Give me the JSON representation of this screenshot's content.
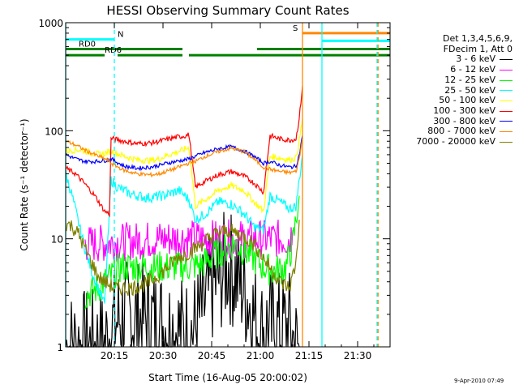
{
  "chart_data": {
    "type": "line",
    "title": "HESSI Observing Summary Count Rates",
    "xlabel": "Start Time (16-Aug-05 20:00:02)",
    "ylabel": "Count Rate (s⁻¹ detector⁻¹)",
    "y_scale": "log",
    "ylim": [
      1,
      1000
    ],
    "xlim_minutes": [
      0,
      100
    ],
    "x_ticks": [
      {
        "at": 15,
        "label": "20:15"
      },
      {
        "at": 30,
        "label": "20:30"
      },
      {
        "at": 45,
        "label": "20:45"
      },
      {
        "at": 60,
        "label": "21:00"
      },
      {
        "at": 75,
        "label": "21:15"
      },
      {
        "at": 90,
        "label": "21:30"
      }
    ],
    "y_ticks": [
      {
        "at": 1,
        "label": "1"
      },
      {
        "at": 10,
        "label": "10"
      },
      {
        "at": 100,
        "label": "100"
      },
      {
        "at": 1000,
        "label": "1000"
      }
    ],
    "legend": {
      "header": [
        "Det 1,3,4,5,6,9,",
        "FDecim 1, Att 0"
      ],
      "position": "right"
    },
    "series": [
      {
        "name": "3 - 6 keV",
        "color": "#000000",
        "x": [
          0,
          12,
          14,
          17,
          25,
          38,
          40,
          45,
          50,
          55,
          60,
          62,
          66,
          69,
          71,
          72
        ],
        "y": [
          1,
          1,
          1.5,
          1.9,
          1.8,
          1.3,
          1.5,
          3.5,
          5.8,
          3.5,
          1.3,
          1.5,
          1.5,
          1.5,
          1,
          1
        ]
      },
      {
        "name": "6 - 12 keV",
        "color": "#ff00ff",
        "x": [
          6,
          10,
          20,
          30,
          38,
          45,
          55,
          62,
          66,
          69,
          70
        ],
        "y": [
          9,
          9,
          9.5,
          10,
          10,
          10,
          10,
          10,
          10,
          10,
          12
        ]
      },
      {
        "name": "12 - 25 keV",
        "color": "#00ff00",
        "x": [
          6,
          10,
          17,
          20,
          30,
          38,
          42,
          47,
          52,
          57,
          61,
          64,
          68,
          70,
          72
        ],
        "y": [
          3,
          3.5,
          5.5,
          5.5,
          5.5,
          5.5,
          5.8,
          7.5,
          9,
          7,
          5.5,
          5,
          5.5,
          9,
          25
        ]
      },
      {
        "name": "25 - 50 keV",
        "color": "#00ffff",
        "x": [
          0,
          2,
          4,
          6,
          8,
          10,
          12,
          14,
          16,
          20,
          25,
          30,
          35,
          38,
          40,
          43,
          47,
          51,
          55,
          58,
          61,
          63,
          66,
          69,
          71,
          72,
          73
        ],
        "y": [
          40,
          25,
          14,
          8,
          5,
          3.5,
          2.5,
          35,
          30,
          26,
          24,
          25,
          28,
          23,
          15,
          17,
          22,
          21,
          17,
          13,
          12,
          25,
          22,
          19,
          20,
          35,
          60
        ]
      },
      {
        "name": "50 - 100 keV",
        "color": "#ffff00",
        "x": [
          0,
          4,
          6,
          8,
          11,
          14,
          18,
          22,
          26,
          29,
          31,
          34,
          37,
          38,
          40,
          43,
          47,
          51,
          55,
          58,
          61,
          63,
          66,
          69,
          71,
          72,
          73
        ],
        "y": [
          65,
          67,
          65,
          62,
          60,
          65,
          58,
          54,
          53,
          55,
          59,
          63,
          68,
          70,
          20,
          23,
          28,
          31,
          28,
          22,
          18,
          58,
          56,
          54,
          56,
          80,
          130
        ]
      },
      {
        "name": "100 - 300 keV",
        "color": "#ff0000",
        "x": [
          0,
          3,
          6,
          9,
          12,
          13.5,
          14,
          18,
          22,
          26,
          29,
          31,
          34,
          37,
          38,
          40,
          43,
          47,
          51,
          55,
          58,
          61,
          63,
          66,
          69,
          71,
          72,
          73
        ],
        "y": [
          45,
          40,
          32,
          25,
          18,
          17,
          85,
          80,
          76,
          77,
          80,
          83,
          87,
          90,
          92,
          30,
          34,
          39,
          42,
          38,
          33,
          27,
          90,
          84,
          82,
          84,
          130,
          260
        ]
      },
      {
        "name": "300 - 800 keV",
        "color": "#0000ff",
        "x": [
          0,
          3,
          6,
          9,
          12,
          13.5,
          14,
          18,
          22,
          26,
          29,
          31,
          34,
          37,
          38,
          40,
          43,
          47,
          51,
          55,
          58,
          61,
          63,
          66,
          69,
          71,
          72,
          73
        ],
        "y": [
          60,
          55,
          52,
          52,
          53,
          54,
          55,
          47,
          45,
          46,
          48,
          50,
          52,
          54,
          55,
          58,
          63,
          68,
          71,
          65,
          58,
          50,
          52,
          48,
          46,
          47,
          60,
          90
        ]
      },
      {
        "name": "800 - 7000 keV",
        "color": "#ff8800",
        "x": [
          0,
          3,
          6,
          9,
          12,
          13.5,
          14,
          18,
          22,
          26,
          29,
          31,
          34,
          37,
          38,
          40,
          43,
          47,
          51,
          55,
          58,
          61,
          63,
          66,
          69,
          71,
          72,
          73
        ],
        "y": [
          80,
          74,
          66,
          60,
          55,
          52,
          50,
          43,
          40,
          39,
          40,
          42,
          45,
          49,
          50,
          52,
          58,
          64,
          69,
          64,
          55,
          46,
          44,
          42,
          41,
          42,
          55,
          85
        ]
      },
      {
        "name": "7000 - 20000 keV",
        "color": "#808000",
        "x": [
          0,
          2,
          4,
          6,
          8,
          10,
          12,
          15,
          20,
          25,
          30,
          34,
          38,
          42,
          46,
          50,
          54,
          58,
          62,
          66,
          69,
          71,
          72
        ],
        "y": [
          14,
          13,
          11,
          8,
          6,
          4.5,
          4,
          3.5,
          3.5,
          3.8,
          5,
          6.5,
          7.5,
          9,
          11,
          12,
          11,
          9,
          6,
          4,
          3.5,
          6,
          15
        ]
      }
    ],
    "state_bars": [
      {
        "label": "N",
        "color": "#00ffff",
        "y": 700,
        "segments": [
          [
            0,
            15
          ]
        ],
        "label_at": 16
      },
      {
        "label": "RD0",
        "color": "#008000",
        "y": 570,
        "segments": [
          [
            0,
            36
          ],
          [
            59,
            100
          ]
        ],
        "label_at": 4
      },
      {
        "label": "RD6",
        "color": "#008000",
        "y": 500,
        "segments": [
          [
            0,
            12
          ],
          [
            16,
            36
          ],
          [
            38,
            59
          ],
          [
            59,
            100
          ]
        ],
        "label_at": 12
      },
      {
        "label": "S",
        "color": "#ff8800",
        "y": 800,
        "segments": [
          [
            73,
            100
          ]
        ],
        "label_at": 70
      },
      {
        "label": "",
        "color": "#00ffff",
        "y": 680,
        "segments": [
          [
            79,
            100
          ]
        ],
        "label_at": null
      }
    ],
    "markers": [
      {
        "x": 0,
        "color": "#00ffff",
        "style": "solid"
      },
      {
        "x": 15,
        "color": "#00ffff",
        "style": "dashed"
      },
      {
        "x": 73,
        "color": "#ff8800",
        "style": "solid"
      },
      {
        "x": 79,
        "color": "#00ffff",
        "style": "solid"
      },
      {
        "x": 96,
        "color": "#00ffff",
        "style": "dashed"
      },
      {
        "x": 96.3,
        "color": "#ff8800",
        "style": "dashed"
      }
    ]
  },
  "footer": {
    "timestamp": "9-Apr-2010 07:49"
  }
}
